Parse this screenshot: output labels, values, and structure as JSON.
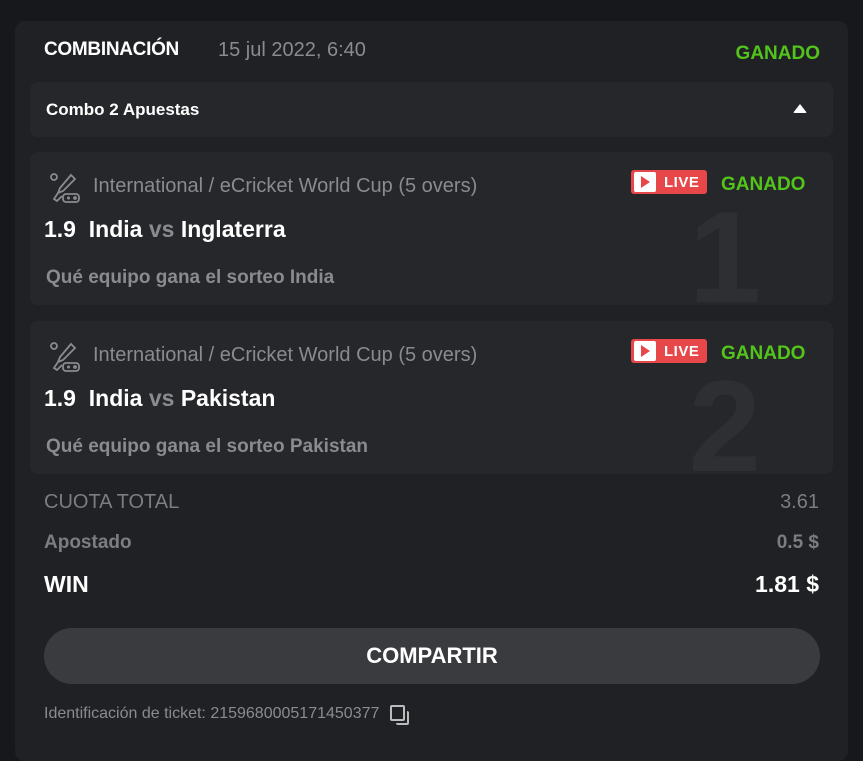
{
  "header": {
    "title": "COMBINACIÓN",
    "date": "15 jul 2022, 6:40",
    "status": "GANADO"
  },
  "combo": {
    "label": "Combo 2 Apuestas",
    "icon": "caret-up-icon"
  },
  "bets": [
    {
      "league": "International / eCricket World Cup (5 overs)",
      "live": "LIVE",
      "status": "GANADO",
      "odds": "1.9",
      "home": "India",
      "vs": "vs",
      "away": "Inglaterra",
      "market": "Qué equipo gana el sorteo India",
      "index": "1"
    },
    {
      "league": "International / eCricket World Cup (5 overs)",
      "live": "LIVE",
      "status": "GANADO",
      "odds": "1.9",
      "home": "India",
      "vs": "vs",
      "away": "Pakistan",
      "market": "Qué equipo gana el sorteo Pakistan",
      "index": "2"
    }
  ],
  "totals": {
    "odds_label": "CUOTA TOTAL",
    "odds_value": "3.61",
    "stake_label": "Apostado",
    "stake_value": "0.5 $",
    "win_label": "WIN",
    "win_value": "1.81 $"
  },
  "share_label": "COMPARTIR",
  "ticket": "Identificación de ticket: 2159680005171450377",
  "colors": {
    "win": "#52c41a",
    "live": "#e8474a",
    "background": "#17181b",
    "card": "#202124"
  }
}
